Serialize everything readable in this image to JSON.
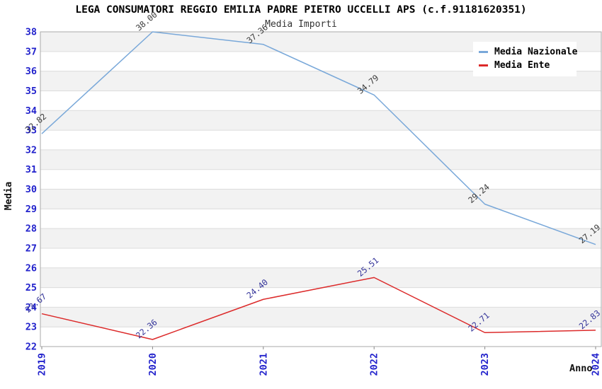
{
  "chart_data": {
    "type": "line",
    "title": "LEGA CONSUMATORI REGGIO EMILIA PADRE PIETRO UCCELLI APS (c.f.91181620351)",
    "subtitle": "Media Importi",
    "xlabel": "Anno",
    "ylabel": "Media",
    "categories": [
      "2019",
      "2020",
      "2021",
      "2022",
      "2023",
      "2024"
    ],
    "ylim": [
      22,
      38
    ],
    "ytick_step": 1,
    "grid": "alternating-horizontal-bands",
    "legend_position": "top-right",
    "label_decimals": 2,
    "series": [
      {
        "name": "Media Nazionale",
        "color": "#79A8D9",
        "label_color": "#3A3A3A",
        "values": [
          32.82,
          38.0,
          37.36,
          34.79,
          29.24,
          27.19
        ]
      },
      {
        "name": "Media Ente",
        "color": "#DC2A2A",
        "label_color": "#333399",
        "values": [
          23.67,
          22.36,
          24.4,
          25.51,
          22.71,
          22.83
        ]
      }
    ],
    "colors": {
      "tick_label": "#2222CC",
      "band": "#F2F2F2",
      "gridline": "#DCDCDC",
      "plot_border": "#AAAAAA",
      "tick_mark": "#888888"
    }
  }
}
